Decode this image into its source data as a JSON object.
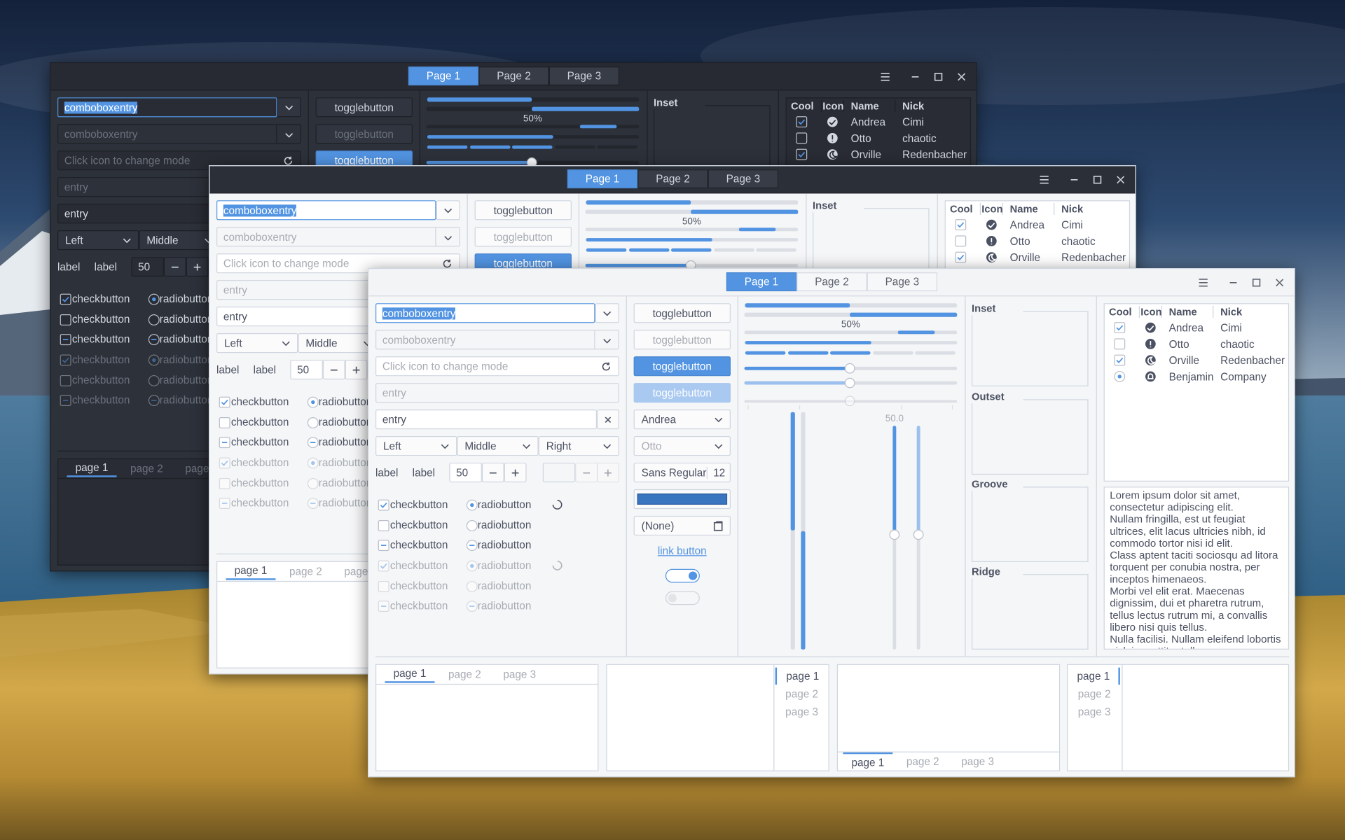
{
  "header": {
    "tabs": [
      "Page 1",
      "Page 2",
      "Page 3"
    ]
  },
  "column1": {
    "combo_entries": [
      "comboboxentry",
      "comboboxentry"
    ],
    "mode_entry": "Click icon to change mode",
    "entries": [
      "entry",
      "entry"
    ],
    "combos": [
      "Left",
      "Middle",
      "Right"
    ],
    "labels": [
      "label",
      "label"
    ],
    "spin": 50,
    "checkbuttons": [
      "checkbutton",
      "checkbutton",
      "checkbutton",
      "checkbutton",
      "checkbutton",
      "checkbutton"
    ],
    "radiobuttons": [
      "radiobutton",
      "radiobutton",
      "radiobutton",
      "radiobutton",
      "radiobutton",
      "radiobutton"
    ]
  },
  "column2": {
    "togglebuttons": [
      "togglebutton",
      "togglebutton",
      "togglebutton",
      "togglebutton"
    ],
    "combos": [
      "Andrea",
      "Otto"
    ],
    "font_button": {
      "family": "Sans Regular",
      "size": 12
    },
    "file_chooser": "(None)",
    "link_button": "link button"
  },
  "column3": {
    "progress_text": "50%",
    "scale_value": "50.0"
  },
  "frames": [
    "Inset",
    "Outset",
    "Groove",
    "Ridge"
  ],
  "tree": {
    "columns": [
      "Cool",
      "Icon",
      "Name",
      "Nick"
    ],
    "rows": [
      {
        "name": "Andrea",
        "nick": "Cimi"
      },
      {
        "name": "Otto",
        "nick": "chaotic"
      },
      {
        "name": "Orville",
        "nick": "Redenbacher"
      },
      {
        "name": "Benjamin",
        "nick": "Company"
      }
    ]
  },
  "textview": {
    "paragraphs": [
      "Lorem ipsum dolor sit amet, consectetur adipiscing elit.",
      "Nullam fringilla, est ut feugiat ultrices, elit lacus ultricies nibh, id commodo tortor nisi id elit.",
      "Class aptent taciti sociosqu ad litora torquent per conubia nostra, per inceptos himenaeos.",
      "Morbi vel elit erat. Maecenas dignissim, dui et pharetra rutrum, tellus lectus rutrum mi, a convallis libero nisi quis tellus.",
      "Nulla facilisi. Nullam eleifend lobortis nisl, in porttitor tellus"
    ]
  },
  "notebooks": {
    "tabs": [
      "page 1",
      "page 2",
      "page 3"
    ]
  }
}
